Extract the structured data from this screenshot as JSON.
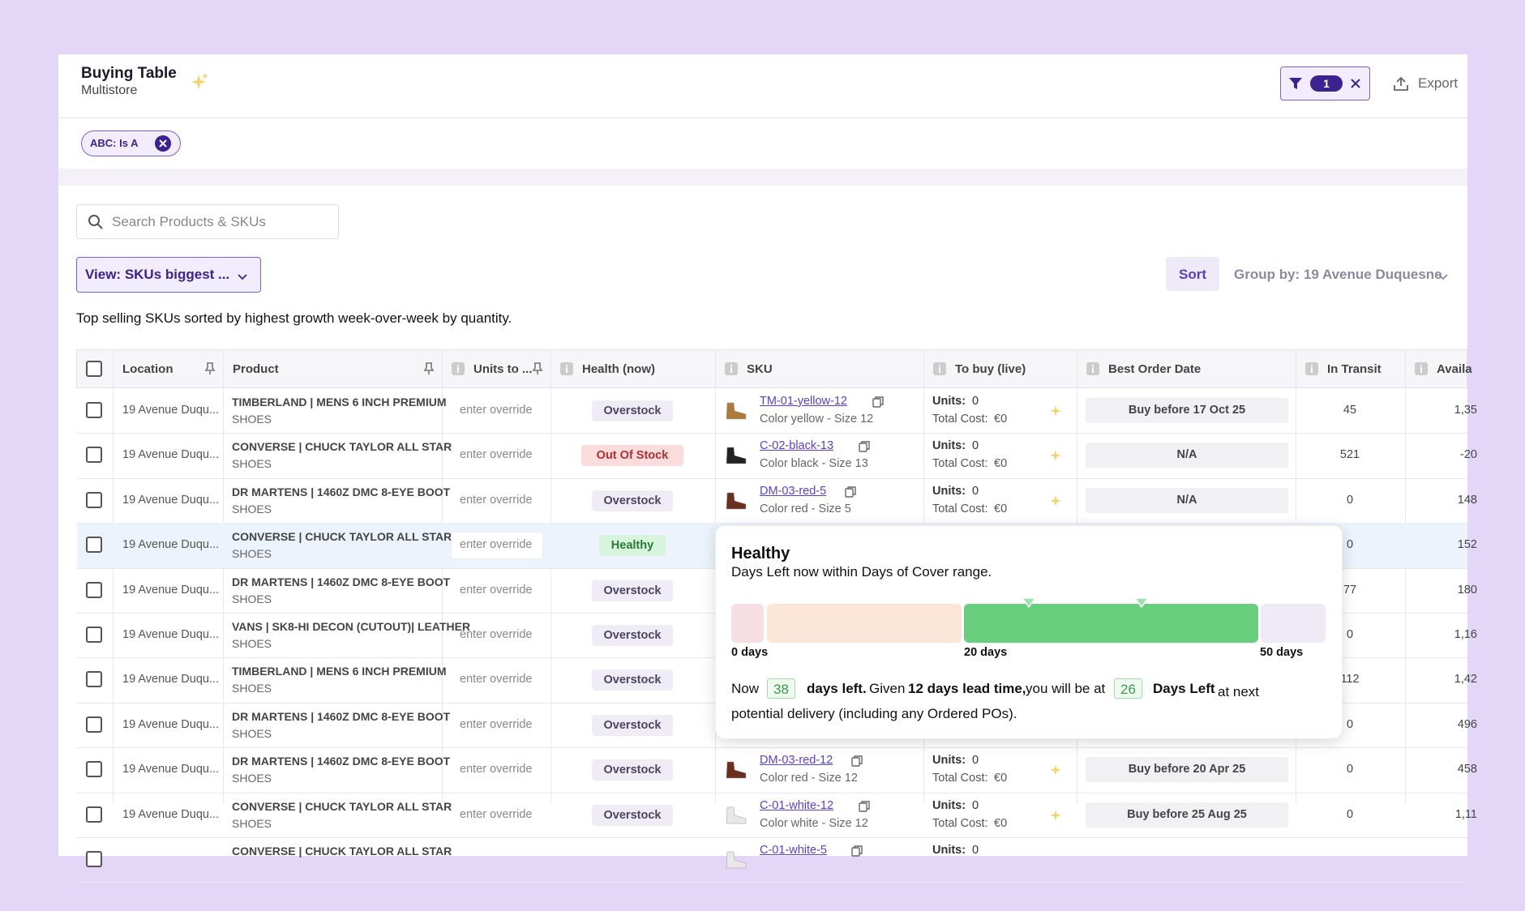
{
  "header": {
    "title": "Buying Table",
    "subtitle": "Multistore",
    "filter_count": "1",
    "export": "Export"
  },
  "filter_chip": "ABC: Is A",
  "search_placeholder": "Search Products & SKUs",
  "view": "View: SKUs biggest ...",
  "sort": "Sort",
  "group_by": "Group by: 19 Avenue Duquesne",
  "description": "Top selling SKUs sorted by highest growth week-over-week by quantity.",
  "table": {
    "columns": [
      "Location",
      "Product",
      "Units to ...",
      "Health (now)",
      "SKU",
      "To buy (live)",
      "Best Order Date",
      "In Transit",
      "Availa"
    ],
    "labels": {
      "units": "Units:",
      "cost": "Total Cost:"
    },
    "rows": [
      {
        "location": "19 Avenue Duqu...",
        "product": "TIMBERLAND | MENS 6 INCH PREMIUM",
        "category": "SHOES",
        "override": "enter override",
        "health": "Overstock",
        "sku": "TM-01-yellow-12",
        "variant": "Color yellow - Size 12",
        "units": "0",
        "cost": "€0",
        "order_date": "Buy before 17 Oct 25",
        "in_transit": "45",
        "available": "1,35"
      },
      {
        "location": "19 Avenue Duqu...",
        "product": "CONVERSE | CHUCK TAYLOR ALL STAR",
        "category": "SHOES",
        "override": "enter override",
        "health": "Out Of Stock",
        "sku": "C-02-black-13",
        "variant": "Color black - Size 13",
        "units": "0",
        "cost": "€0",
        "order_date": "N/A",
        "in_transit": "521",
        "available": "-20"
      },
      {
        "location": "19 Avenue Duqu...",
        "product": "DR MARTENS | 1460Z DMC 8-EYE BOOT",
        "category": "SHOES",
        "override": "enter override",
        "health": "Overstock",
        "sku": "DM-03-red-5",
        "variant": "Color red - Size 5",
        "units": "0",
        "cost": "€0",
        "order_date": "N/A",
        "in_transit": "0",
        "available": "148"
      },
      {
        "location": "19 Avenue Duqu...",
        "product": "CONVERSE | CHUCK TAYLOR ALL STAR",
        "category": "SHOES",
        "override": "enter override",
        "health": "Healthy",
        "in_transit": "0",
        "available": "152"
      },
      {
        "location": "19 Avenue Duqu...",
        "product": "DR MARTENS | 1460Z DMC 8-EYE BOOT",
        "category": "SHOES",
        "override": "enter override",
        "health": "Overstock",
        "in_transit": "77",
        "available": "180"
      },
      {
        "location": "19 Avenue Duqu...",
        "product": "VANS | SK8-HI DECON (CUTOUT)| LEATHER",
        "category": "SHOES",
        "override": "enter override",
        "health": "Overstock",
        "in_transit": "0",
        "available": "1,16"
      },
      {
        "location": "19 Avenue Duqu...",
        "product": "TIMBERLAND | MENS 6 INCH PREMIUM",
        "category": "SHOES",
        "override": "enter override",
        "health": "Overstock",
        "in_transit": "112",
        "available": "1,42"
      },
      {
        "location": "19 Avenue Duqu...",
        "product": "DR MARTENS | 1460Z DMC 8-EYE BOOT",
        "category": "SHOES",
        "override": "enter override",
        "health": "Overstock",
        "in_transit": "0",
        "available": "496"
      },
      {
        "location": "19 Avenue Duqu...",
        "product": "DR MARTENS | 1460Z DMC 8-EYE BOOT",
        "category": "SHOES",
        "override": "enter override",
        "health": "Overstock",
        "sku": "DM-03-red-12",
        "variant": "Color red - Size 12",
        "units": "0",
        "cost": "€0",
        "order_date": "Buy before 20 Apr 25",
        "in_transit": "0",
        "available": "458"
      },
      {
        "location": "19 Avenue Duqu...",
        "product": "CONVERSE | CHUCK TAYLOR ALL STAR",
        "category": "SHOES",
        "override": "enter override",
        "health": "Overstock",
        "sku": "C-01-white-12",
        "variant": "Color white - Size 12",
        "units": "0",
        "cost": "€0",
        "order_date": "Buy before 25 Aug 25",
        "in_transit": "0",
        "available": "1,11"
      },
      {
        "product": "CONVERSE | CHUCK TAYLOR ALL STAR",
        "sku": "C-01-white-5",
        "units": "0"
      }
    ]
  },
  "tooltip": {
    "title": "Healthy",
    "subtitle": "Days Left now within Days of Cover range.",
    "scale": [
      "0 days",
      "20 days",
      "50 days"
    ],
    "sentence": {
      "now": "Now",
      "days_now": "38",
      "days_left": "days left.",
      "given": "Given",
      "lead": "12 days lead time,",
      "will_be": "you will be at",
      "days_after": "26",
      "days_left_label": "Days Left",
      "rest": "at next potential delivery (including any Ordered POs)."
    }
  }
}
